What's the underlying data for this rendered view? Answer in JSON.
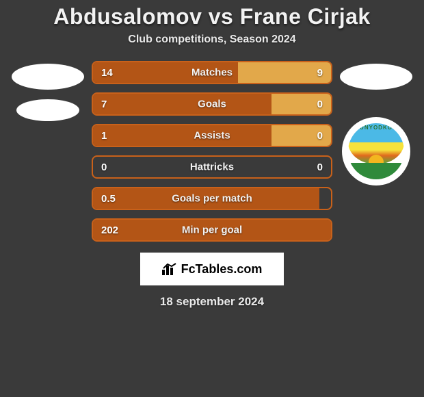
{
  "title": "Abdusalomov vs Frane Cirjak",
  "subtitle": "Club competitions, Season 2024",
  "date_text": "18 september 2024",
  "branding_text": "FcTables.com",
  "club_badge_label": "BUNYODKOR",
  "colors": {
    "page_bg": "#3a3a3a",
    "bar_border": "#c9611a",
    "bar_empty_bg": "#3a3a3a",
    "bar_left_fill": "#b35516",
    "bar_right_fill": "#e2a84a",
    "text": "#f2f2f2"
  },
  "stats": [
    {
      "label": "Matches",
      "left_value": "14",
      "right_value": "9",
      "left_pct": 61,
      "right_pct": 39
    },
    {
      "label": "Goals",
      "left_value": "7",
      "right_value": "0",
      "left_pct": 75,
      "right_pct": 25
    },
    {
      "label": "Assists",
      "left_value": "1",
      "right_value": "0",
      "left_pct": 75,
      "right_pct": 25
    },
    {
      "label": "Hattricks",
      "left_value": "0",
      "right_value": "0",
      "left_pct": 0,
      "right_pct": 0
    },
    {
      "label": "Goals per match",
      "left_value": "0.5",
      "right_value": "",
      "left_pct": 95,
      "right_pct": 0
    },
    {
      "label": "Min per goal",
      "left_value": "202",
      "right_value": "",
      "left_pct": 100,
      "right_pct": 0
    }
  ]
}
